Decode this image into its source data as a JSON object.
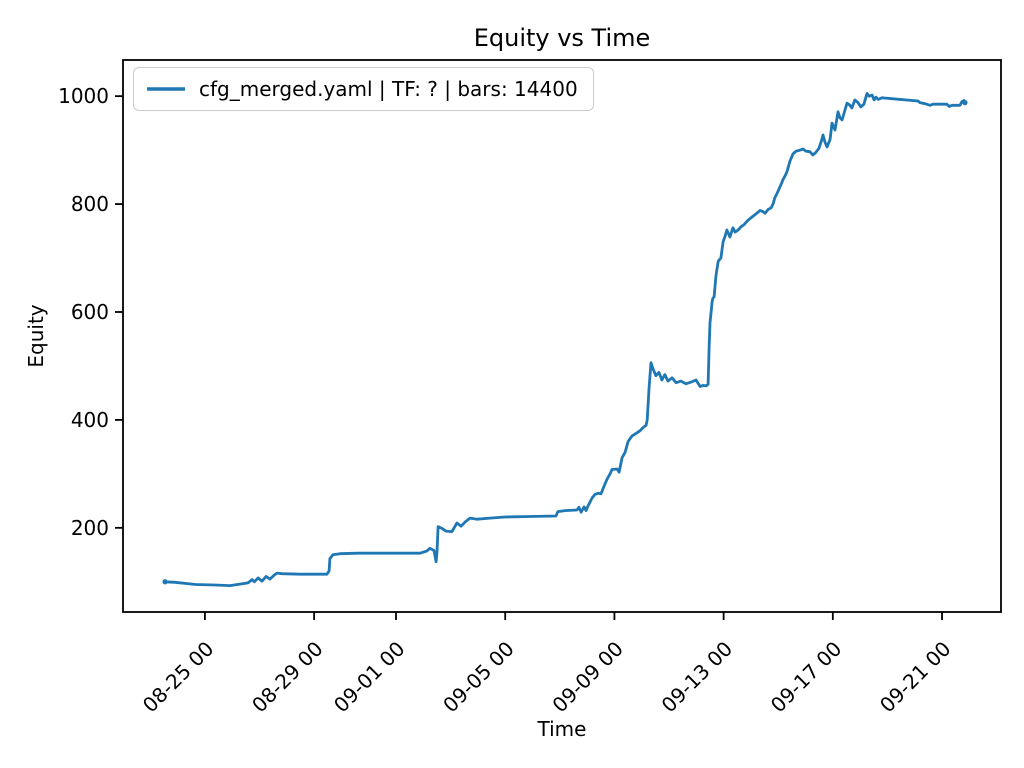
{
  "chart_data": {
    "type": "line",
    "title": "Equity vs Time",
    "xlabel": "Time",
    "ylabel": "Equity",
    "grid": false,
    "legend_position": "upper left",
    "line_color": "#1f77b4",
    "xlim": [
      0,
      32.16
    ],
    "ylim": [
      44,
      1067
    ],
    "x_ticks": [
      {
        "label": "08-25 00",
        "d": 3
      },
      {
        "label": "08-29 00",
        "d": 7
      },
      {
        "label": "09-01 00",
        "d": 10
      },
      {
        "label": "09-05 00",
        "d": 14
      },
      {
        "label": "09-09 00",
        "d": 18
      },
      {
        "label": "09-13 00",
        "d": 22
      },
      {
        "label": "09-17 00",
        "d": 26
      },
      {
        "label": "09-21 00",
        "d": 30
      }
    ],
    "y_ticks": [
      {
        "label": "200",
        "v": 200
      },
      {
        "label": "400",
        "v": 400
      },
      {
        "label": "600",
        "v": 600
      },
      {
        "label": "800",
        "v": 800
      },
      {
        "label": "1000",
        "v": 1000
      }
    ],
    "series": [
      {
        "name": "cfg_merged.yaml | TF: ? | bars: 14400",
        "color": "#1f77b4",
        "x_unit": "days after first x-axis gridline minus 3 (d=3 is 08-25 00)",
        "points": [
          [
            1.54,
            100
          ],
          [
            1.9,
            99
          ],
          [
            2.67,
            95
          ],
          [
            3.37,
            94
          ],
          [
            3.92,
            93
          ],
          [
            4.58,
            98
          ],
          [
            4.73,
            104
          ],
          [
            4.81,
            100
          ],
          [
            4.95,
            107
          ],
          [
            5.09,
            101
          ],
          [
            5.24,
            110
          ],
          [
            5.38,
            105
          ],
          [
            5.53,
            112
          ],
          [
            5.64,
            116
          ],
          [
            5.82,
            115
          ],
          [
            6.48,
            114
          ],
          [
            7.47,
            114
          ],
          [
            7.55,
            120
          ],
          [
            7.58,
            143
          ],
          [
            7.69,
            150
          ],
          [
            7.95,
            152
          ],
          [
            8.61,
            153
          ],
          [
            9.41,
            153
          ],
          [
            10.88,
            153
          ],
          [
            11.13,
            157
          ],
          [
            11.24,
            162
          ],
          [
            11.39,
            158
          ],
          [
            11.47,
            137
          ],
          [
            11.5,
            155
          ],
          [
            11.54,
            202
          ],
          [
            11.68,
            199
          ],
          [
            11.83,
            194
          ],
          [
            12.05,
            193
          ],
          [
            12.23,
            209
          ],
          [
            12.38,
            203
          ],
          [
            12.56,
            212
          ],
          [
            12.71,
            218
          ],
          [
            12.97,
            216
          ],
          [
            13.44,
            218
          ],
          [
            13.99,
            220
          ],
          [
            14.91,
            221
          ],
          [
            15.86,
            222
          ],
          [
            15.93,
            230
          ],
          [
            16.19,
            232
          ],
          [
            16.63,
            233
          ],
          [
            16.7,
            238
          ],
          [
            16.78,
            229
          ],
          [
            16.89,
            239
          ],
          [
            16.96,
            232
          ],
          [
            17.03,
            240
          ],
          [
            17.18,
            255
          ],
          [
            17.29,
            262
          ],
          [
            17.4,
            264
          ],
          [
            17.51,
            263
          ],
          [
            17.62,
            277
          ],
          [
            17.73,
            290
          ],
          [
            17.84,
            300
          ],
          [
            17.91,
            308
          ],
          [
            18.1,
            309
          ],
          [
            18.17,
            303
          ],
          [
            18.28,
            330
          ],
          [
            18.39,
            340
          ],
          [
            18.5,
            360
          ],
          [
            18.64,
            370
          ],
          [
            18.79,
            375
          ],
          [
            18.94,
            380
          ],
          [
            19.05,
            386
          ],
          [
            19.16,
            390
          ],
          [
            19.2,
            400
          ],
          [
            19.27,
            460
          ],
          [
            19.34,
            506
          ],
          [
            19.41,
            495
          ],
          [
            19.52,
            482
          ],
          [
            19.63,
            488
          ],
          [
            19.74,
            474
          ],
          [
            19.85,
            484
          ],
          [
            19.96,
            472
          ],
          [
            20.11,
            478
          ],
          [
            20.26,
            469
          ],
          [
            20.44,
            472
          ],
          [
            20.62,
            467
          ],
          [
            20.81,
            470
          ],
          [
            20.99,
            474
          ],
          [
            21.14,
            462
          ],
          [
            21.25,
            464
          ],
          [
            21.36,
            463
          ],
          [
            21.43,
            466
          ],
          [
            21.47,
            539
          ],
          [
            21.5,
            580
          ],
          [
            21.58,
            620
          ],
          [
            21.61,
            626
          ],
          [
            21.65,
            628
          ],
          [
            21.72,
            668
          ],
          [
            21.8,
            694
          ],
          [
            21.9,
            700
          ],
          [
            21.98,
            730
          ],
          [
            22.05,
            740
          ],
          [
            22.12,
            752
          ],
          [
            22.23,
            739
          ],
          [
            22.34,
            756
          ],
          [
            22.42,
            748
          ],
          [
            22.53,
            752
          ],
          [
            22.64,
            758
          ],
          [
            22.75,
            762
          ],
          [
            22.89,
            770
          ],
          [
            23.04,
            776
          ],
          [
            23.22,
            783
          ],
          [
            23.33,
            788
          ],
          [
            23.44,
            786
          ],
          [
            23.52,
            783
          ],
          [
            23.63,
            790
          ],
          [
            23.74,
            793
          ],
          [
            23.81,
            800
          ],
          [
            23.88,
            812
          ],
          [
            23.96,
            820
          ],
          [
            24.03,
            828
          ],
          [
            24.1,
            836
          ],
          [
            24.17,
            845
          ],
          [
            24.25,
            852
          ],
          [
            24.32,
            860
          ],
          [
            24.43,
            880
          ],
          [
            24.54,
            893
          ],
          [
            24.65,
            898
          ],
          [
            24.8,
            900
          ],
          [
            24.91,
            902
          ],
          [
            25.02,
            898
          ],
          [
            25.16,
            897
          ],
          [
            25.27,
            891
          ],
          [
            25.38,
            896
          ],
          [
            25.49,
            903
          ],
          [
            25.6,
            920
          ],
          [
            25.64,
            928
          ],
          [
            25.71,
            915
          ],
          [
            25.79,
            906
          ],
          [
            25.9,
            920
          ],
          [
            25.97,
            950
          ],
          [
            26.08,
            937
          ],
          [
            26.19,
            971
          ],
          [
            26.26,
            960
          ],
          [
            26.34,
            956
          ],
          [
            26.45,
            975
          ],
          [
            26.52,
            987
          ],
          [
            26.63,
            983
          ],
          [
            26.7,
            978
          ],
          [
            26.81,
            993
          ],
          [
            26.92,
            988
          ],
          [
            27.03,
            980
          ],
          [
            27.14,
            985
          ],
          [
            27.25,
            1005
          ],
          [
            27.33,
            1000
          ],
          [
            27.44,
            1002
          ],
          [
            27.51,
            993
          ],
          [
            27.58,
            998
          ],
          [
            27.66,
            994
          ],
          [
            27.8,
            997
          ],
          [
            29.12,
            991
          ],
          [
            29.19,
            988
          ],
          [
            29.38,
            986
          ],
          [
            29.56,
            983
          ],
          [
            29.67,
            985
          ],
          [
            30.18,
            985
          ],
          [
            30.26,
            981
          ],
          [
            30.37,
            983
          ],
          [
            30.66,
            983
          ],
          [
            30.73,
            990
          ],
          [
            30.81,
            992
          ],
          [
            30.84,
            988
          ]
        ]
      }
    ]
  }
}
